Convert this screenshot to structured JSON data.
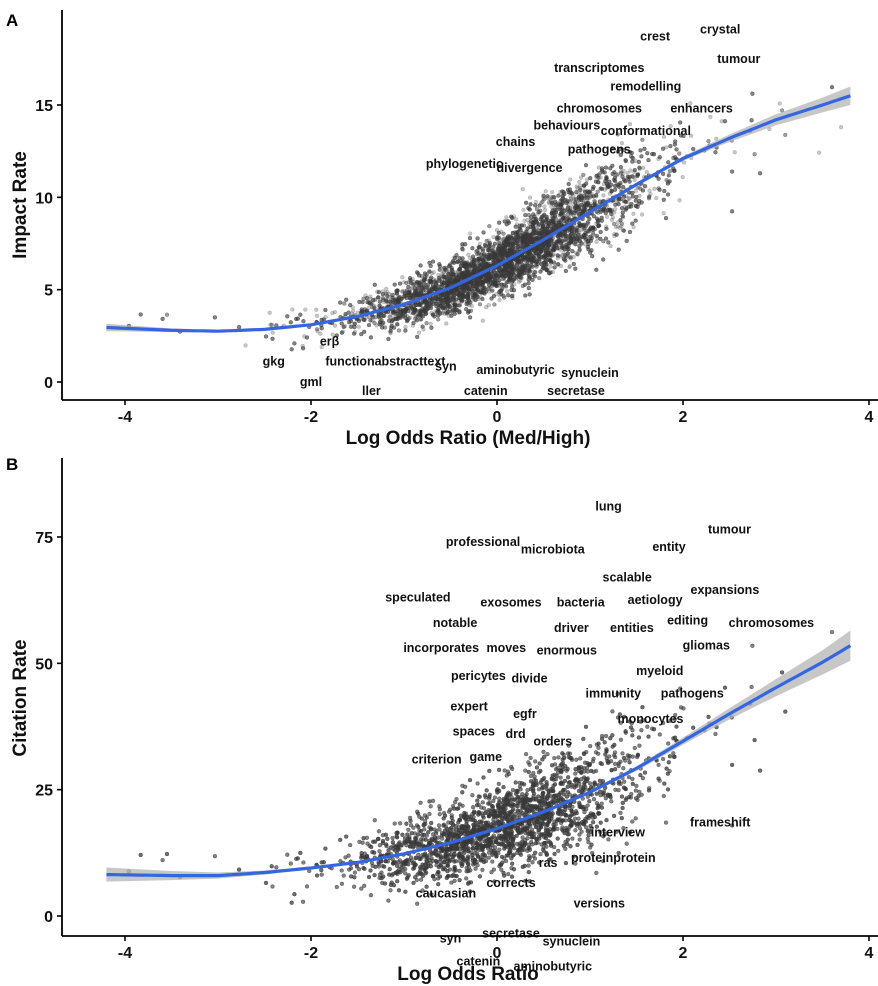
{
  "colors": {
    "points": "#3a3a3a",
    "trend": "#3366e0",
    "band": "#b4b4b4",
    "text": "#111111"
  },
  "chart_data": [
    {
      "panel": "A",
      "type": "scatter",
      "title": "",
      "xlabel": "Log Odds Ratio (Med/High)",
      "ylabel": "Impact Rate",
      "xlim": [
        -4.5,
        4.1
      ],
      "ylim": [
        -0.9,
        20
      ],
      "xticks": [
        -4,
        -2,
        0,
        2,
        4
      ],
      "yticks": [
        0,
        5,
        10,
        15
      ],
      "xtick_labels": [
        "-4",
        "-2",
        "0",
        "2",
        "4"
      ],
      "ytick_labels": [
        "0",
        "5",
        "10",
        "15"
      ],
      "grid": false,
      "point_cloud": {
        "n_points": 7000,
        "x_center": 0.05,
        "x_spread": 0.75,
        "note_shape": "dense cloud following trend"
      },
      "trend_line": {
        "x": [
          -4.2,
          -3.5,
          -3.0,
          -2.5,
          -2.0,
          -1.5,
          -1.0,
          -0.5,
          0.0,
          0.5,
          1.0,
          1.5,
          2.0,
          2.5,
          3.0,
          3.5,
          3.8
        ],
        "y": [
          2.95,
          2.8,
          2.75,
          2.85,
          3.1,
          3.55,
          4.2,
          5.1,
          6.3,
          7.7,
          9.2,
          10.7,
          12.1,
          13.2,
          14.2,
          15.0,
          15.5
        ],
        "band_halfwidth": [
          0.2,
          0.1,
          0.06,
          0.05,
          0.05,
          0.05,
          0.05,
          0.05,
          0.05,
          0.05,
          0.06,
          0.08,
          0.12,
          0.2,
          0.3,
          0.4,
          0.5
        ]
      },
      "labels": [
        {
          "text": "crystal",
          "x": 2.4,
          "y": 19.1
        },
        {
          "text": "crest",
          "x": 1.7,
          "y": 18.7
        },
        {
          "text": "tumour",
          "x": 2.6,
          "y": 17.5
        },
        {
          "text": "transcriptomes",
          "x": 1.1,
          "y": 17.0
        },
        {
          "text": "remodelling",
          "x": 1.6,
          "y": 16.0
        },
        {
          "text": "chromosomes",
          "x": 1.1,
          "y": 14.8
        },
        {
          "text": "enhancers",
          "x": 2.2,
          "y": 14.8
        },
        {
          "text": "behaviours",
          "x": 0.75,
          "y": 13.9
        },
        {
          "text": "conformational",
          "x": 1.6,
          "y": 13.6
        },
        {
          "text": "chains",
          "x": 0.2,
          "y": 13.0
        },
        {
          "text": "pathogens",
          "x": 1.1,
          "y": 12.6
        },
        {
          "text": "phylogenetic",
          "x": -0.35,
          "y": 11.8
        },
        {
          "text": "divergence",
          "x": 0.35,
          "y": 11.6
        },
        {
          "text": "erβ",
          "x": -1.8,
          "y": 2.2
        },
        {
          "text": "gkg",
          "x": -2.4,
          "y": 1.1
        },
        {
          "text": "functionabstracttext",
          "x": -1.2,
          "y": 1.1
        },
        {
          "text": "syn",
          "x": -0.55,
          "y": 0.85
        },
        {
          "text": "aminobutyric",
          "x": 0.2,
          "y": 0.65
        },
        {
          "text": "synuclein",
          "x": 1.0,
          "y": 0.5
        },
        {
          "text": "gml",
          "x": -2.0,
          "y": 0.0
        },
        {
          "text": "ller",
          "x": -1.35,
          "y": -0.5
        },
        {
          "text": "catenin",
          "x": -0.12,
          "y": -0.5
        },
        {
          "text": "secretase",
          "x": 0.85,
          "y": -0.5
        }
      ]
    },
    {
      "panel": "B",
      "type": "scatter",
      "title": "",
      "xlabel": "Log Odds Ratio",
      "ylabel": "Citation Rate",
      "xlim": [
        -4.5,
        4.1
      ],
      "ylim": [
        -3,
        90
      ],
      "xticks": [
        -4,
        -2,
        0,
        2,
        4
      ],
      "yticks": [
        0,
        25,
        50,
        75
      ],
      "xtick_labels": [
        "-4",
        "-2",
        "0",
        "2",
        "4"
      ],
      "ytick_labels": [
        "0",
        "25",
        "50",
        "75"
      ],
      "grid": false,
      "point_cloud": {
        "n_points": 7000,
        "x_center": 0.05,
        "x_spread": 0.75,
        "note_shape": "dense cloud following trend"
      },
      "trend_line": {
        "x": [
          -4.2,
          -3.5,
          -3.0,
          -2.5,
          -2.0,
          -1.5,
          -1.0,
          -0.5,
          0.0,
          0.5,
          1.0,
          1.5,
          2.0,
          2.5,
          3.0,
          3.5,
          3.8
        ],
        "y": [
          8.2,
          8.0,
          8.0,
          8.6,
          9.5,
          10.6,
          12.3,
          14.5,
          17.3,
          20.6,
          24.5,
          29.2,
          34.6,
          40.0,
          45.2,
          50.2,
          53.5
        ],
        "band_halfwidth": [
          1.4,
          0.9,
          0.6,
          0.4,
          0.3,
          0.25,
          0.25,
          0.25,
          0.25,
          0.25,
          0.3,
          0.45,
          0.7,
          1.1,
          1.7,
          2.4,
          3.0
        ]
      },
      "labels": [
        {
          "text": "lung",
          "x": 1.2,
          "y": 81
        },
        {
          "text": "tumour",
          "x": 2.5,
          "y": 76.5
        },
        {
          "text": "professional",
          "x": -0.15,
          "y": 74
        },
        {
          "text": "microbiota",
          "x": 0.6,
          "y": 72.5
        },
        {
          "text": "entity",
          "x": 1.85,
          "y": 73
        },
        {
          "text": "scalable",
          "x": 1.4,
          "y": 67
        },
        {
          "text": "expansions",
          "x": 2.45,
          "y": 64.5
        },
        {
          "text": "speculated",
          "x": -0.85,
          "y": 63
        },
        {
          "text": "exosomes",
          "x": 0.15,
          "y": 62
        },
        {
          "text": "bacteria",
          "x": 0.9,
          "y": 62
        },
        {
          "text": "aetiology",
          "x": 1.7,
          "y": 62.5
        },
        {
          "text": "notable",
          "x": -0.45,
          "y": 58
        },
        {
          "text": "driver",
          "x": 0.8,
          "y": 57
        },
        {
          "text": "entities",
          "x": 1.45,
          "y": 57
        },
        {
          "text": "editing",
          "x": 2.05,
          "y": 58.5
        },
        {
          "text": "chromosomes",
          "x": 2.95,
          "y": 58
        },
        {
          "text": "incorporates",
          "x": -0.6,
          "y": 53
        },
        {
          "text": "moves",
          "x": 0.1,
          "y": 53
        },
        {
          "text": "enormous",
          "x": 0.75,
          "y": 52.5
        },
        {
          "text": "gliomas",
          "x": 2.25,
          "y": 53.5
        },
        {
          "text": "myeloid",
          "x": 1.75,
          "y": 48.5
        },
        {
          "text": "pericytes",
          "x": -0.2,
          "y": 47.5
        },
        {
          "text": "divide",
          "x": 0.35,
          "y": 47
        },
        {
          "text": "pathogens",
          "x": 2.1,
          "y": 44
        },
        {
          "text": "immunity",
          "x": 1.25,
          "y": 44
        },
        {
          "text": "expert",
          "x": -0.3,
          "y": 41.5
        },
        {
          "text": "egfr",
          "x": 0.3,
          "y": 40
        },
        {
          "text": "monocytes",
          "x": 1.65,
          "y": 39
        },
        {
          "text": "spaces",
          "x": -0.25,
          "y": 36.5
        },
        {
          "text": "drd",
          "x": 0.2,
          "y": 36
        },
        {
          "text": "orders",
          "x": 0.6,
          "y": 34.5
        },
        {
          "text": "criterion",
          "x": -0.65,
          "y": 31
        },
        {
          "text": "game",
          "x": -0.12,
          "y": 31.5
        },
        {
          "text": "frameshift",
          "x": 2.4,
          "y": 18.5
        },
        {
          "text": "interview",
          "x": 1.3,
          "y": 16.5
        },
        {
          "text": "proteinprotein",
          "x": 1.25,
          "y": 11.5
        },
        {
          "text": "ras",
          "x": 0.55,
          "y": 10.5
        },
        {
          "text": "corrects",
          "x": 0.15,
          "y": 6.5
        },
        {
          "text": "caucasian",
          "x": -0.55,
          "y": 4.5
        },
        {
          "text": "versions",
          "x": 1.1,
          "y": 2.5
        },
        {
          "text": "syn",
          "x": -0.5,
          "y": -4.5
        },
        {
          "text": "secretase",
          "x": 0.15,
          "y": -3.5
        },
        {
          "text": "synuclein",
          "x": 0.8,
          "y": -5.0
        },
        {
          "text": "catenin",
          "x": -0.2,
          "y": -9.0
        },
        {
          "text": "aminobutyric",
          "x": 0.6,
          "y": -10.0
        }
      ]
    }
  ]
}
